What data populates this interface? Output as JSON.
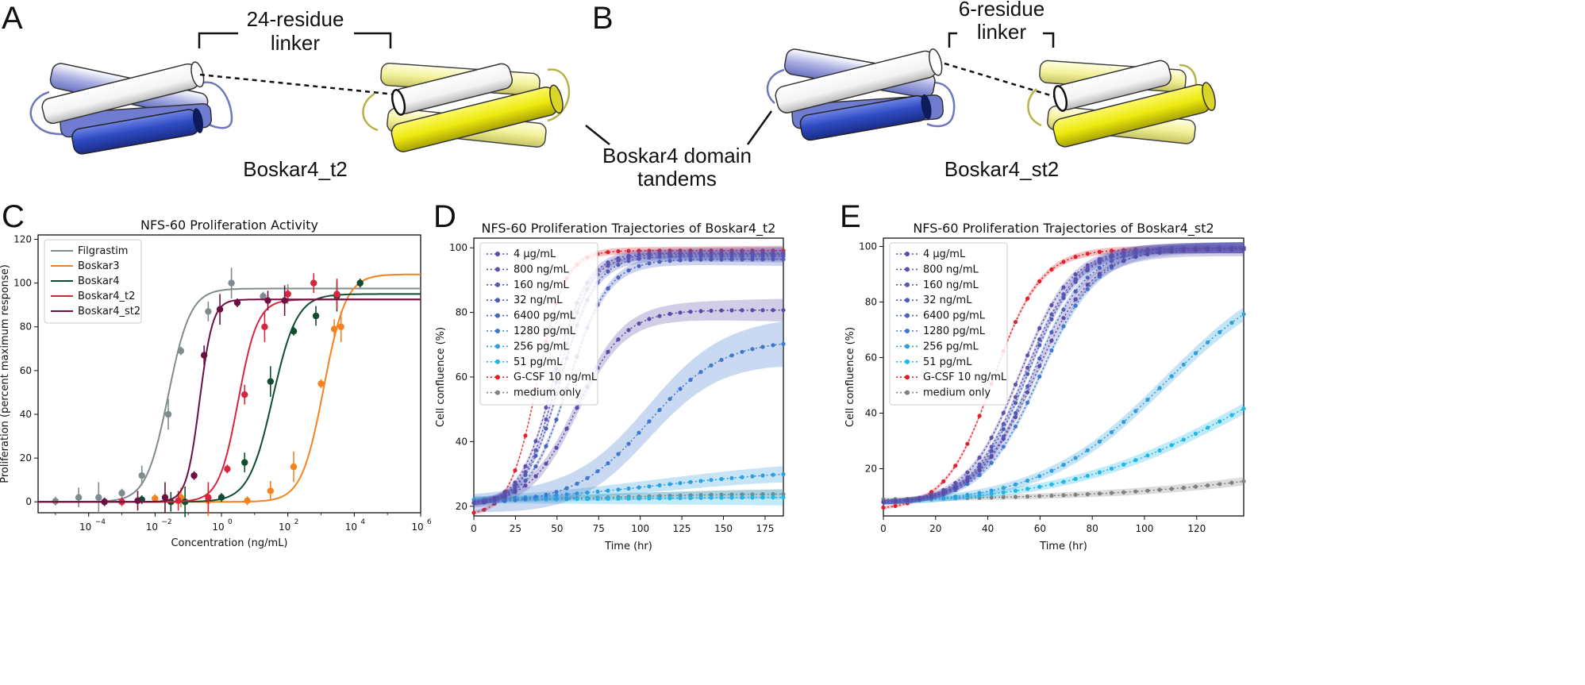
{
  "panels": {
    "A": {
      "letter": "A",
      "linker_line1": "24-residue",
      "linker_line2": "linker",
      "name": "Boskar4_t2"
    },
    "B": {
      "letter": "B",
      "linker_line1": "6-residue",
      "linker_line2": "linker",
      "name": "Boskar4_st2"
    },
    "center_label_line1": "Boskar4 domain",
    "center_label_line2": "tandems",
    "C": {
      "letter": "C"
    },
    "D": {
      "letter": "D"
    },
    "E": {
      "letter": "E"
    }
  },
  "colors": {
    "helix_blue": "#2f4cc4",
    "helix_blue_light": "#9ea5df",
    "helix_white": "#ffffff",
    "helix_yellow": "#f2ee1e",
    "helix_yellow_light": "#f6f4a4"
  },
  "chart_data": [
    {
      "id": "C",
      "type": "scatter",
      "title": "NFS-60 Proliferation Activity",
      "xlabel": "Concentration (ng/mL)",
      "ylabel": "Proliferation (percent maximum response)",
      "xscale": "log",
      "xlim": [
        3e-06,
        1000000
      ],
      "ylim": [
        -5,
        122
      ],
      "xticks": [
        0.0001,
        0.01,
        1,
        100,
        10000,
        1000000
      ],
      "xtick_labels": [
        "10",
        "10",
        "10",
        "10",
        "10",
        "10"
      ],
      "xtick_exponents": [
        "−4",
        "−2",
        "0",
        "2",
        "4",
        "6"
      ],
      "yticks": [
        0,
        20,
        40,
        60,
        80,
        100,
        120
      ],
      "ytick_labels": [
        "0",
        "20",
        "40",
        "60",
        "80",
        "100",
        "120"
      ],
      "legend_position": "top-left",
      "series": [
        {
          "name": "Filgrastim",
          "color": "#7f8c8d",
          "ec50": 0.025,
          "hill": 1.3,
          "top": 97.5,
          "points": [
            [
              1e-05,
              0.3
            ],
            [
              5e-05,
              2
            ],
            [
              0.0002,
              2
            ],
            [
              0.001,
              4
            ],
            [
              0.004,
              12
            ],
            [
              0.025,
              40
            ],
            [
              0.06,
              69
            ],
            [
              0.4,
              87
            ],
            [
              2,
              100
            ],
            [
              18,
              94
            ],
            [
              100,
              95
            ]
          ]
        },
        {
          "name": "Boskar3",
          "color": "#f5821f",
          "ec50": 1200,
          "hill": 1.3,
          "top": 104,
          "points": [
            [
              0.01,
              1.5
            ],
            [
              0.06,
              2
            ],
            [
              0.4,
              0.5
            ],
            [
              6,
              0.5
            ],
            [
              30,
              5
            ],
            [
              150,
              16
            ],
            [
              1000,
              54
            ],
            [
              2500,
              79
            ],
            [
              4000,
              80
            ],
            [
              15000,
              100
            ]
          ]
        },
        {
          "name": "Boskar4",
          "color": "#0e4d2f",
          "ec50": 35,
          "hill": 1.2,
          "top": 95,
          "points": [
            [
              0.004,
              1
            ],
            [
              0.03,
              0
            ],
            [
              0.08,
              0
            ],
            [
              1,
              2
            ],
            [
              5,
              18
            ],
            [
              30,
              55
            ],
            [
              150,
              78
            ],
            [
              700,
              85
            ],
            [
              3000,
              94
            ],
            [
              15000,
              100
            ]
          ]
        },
        {
          "name": "Boskar4_t2",
          "color": "#d7263d",
          "ec50": 3.2,
          "hill": 1.5,
          "top": 92.5,
          "points": [
            [
              0.001,
              0
            ],
            [
              0.05,
              0.5
            ],
            [
              0.4,
              2
            ],
            [
              1.5,
              15
            ],
            [
              5,
              49
            ],
            [
              20,
              80
            ],
            [
              100,
              95
            ],
            [
              600,
              100
            ],
            [
              3000,
              95
            ]
          ]
        },
        {
          "name": "Boskar4_st2",
          "color": "#6b1043",
          "ec50": 0.22,
          "hill": 2.2,
          "top": 92.5,
          "points": [
            [
              0.0003,
              0
            ],
            [
              0.003,
              0.5
            ],
            [
              0.02,
              2
            ],
            [
              0.15,
              12
            ],
            [
              0.3,
              67
            ],
            [
              0.9,
              88
            ],
            [
              3,
              91
            ],
            [
              25,
              92
            ],
            [
              80,
              92
            ]
          ]
        }
      ]
    },
    {
      "id": "D",
      "type": "line",
      "title": "NFS-60 Proliferation Trajectories of Boskar4_t2",
      "xlabel": "Time (hr)",
      "ylabel": "Cell confluence (%)",
      "xlim": [
        0,
        186
      ],
      "ylim": [
        17,
        103
      ],
      "xticks": [
        0,
        25,
        50,
        75,
        100,
        125,
        150,
        175
      ],
      "xtick_labels": [
        "0",
        "25",
        "50",
        "75",
        "100",
        "125",
        "150",
        "175"
      ],
      "yticks": [
        20,
        40,
        60,
        80,
        100
      ],
      "ytick_labels": [
        "20",
        "40",
        "60",
        "80",
        "100"
      ],
      "legend_position": "top-left",
      "series": [
        {
          "name": "4 µg/mL",
          "color": "#5b4aa8",
          "y0": 21,
          "top": 81.5,
          "mid": 62,
          "k": 0.07,
          "band": 3.5
        },
        {
          "name": "800 ng/mL",
          "color": "#5a52ae",
          "y0": 21,
          "top": 99,
          "mid": 48,
          "k": 0.1,
          "band": 2
        },
        {
          "name": "160 ng/mL",
          "color": "#5a56b2",
          "y0": 21,
          "top": 98.5,
          "mid": 50,
          "k": 0.1,
          "band": 2
        },
        {
          "name": "32 ng/mL",
          "color": "#4b5bb7",
          "y0": 21,
          "top": 98,
          "mid": 52,
          "k": 0.095,
          "band": 2
        },
        {
          "name": "6400 pg/mL",
          "color": "#4a63bf",
          "y0": 21,
          "top": 97,
          "mid": 57,
          "k": 0.085,
          "band": 2
        },
        {
          "name": "1280 pg/mL",
          "color": "#3f78cf",
          "y0": 21,
          "top": 72,
          "mid": 105,
          "k": 0.045,
          "band": 7
        },
        {
          "name": "256 pg/mL",
          "color": "#2e9fdc",
          "y0": 22,
          "top": 33,
          "mid": 110,
          "k": 0.02,
          "band": 2.5
        },
        {
          "name": "51 pg/mL",
          "color": "#1fb7e8",
          "y0": 22,
          "top": 23,
          "mid": 90,
          "k": 0.02,
          "band": 2.5
        },
        {
          "name": "G-CSF 10 ng/mL",
          "color": "#e0202a",
          "y0": 18,
          "top": 100,
          "mid": 38,
          "k": 0.12,
          "band": 1.5
        },
        {
          "name": "medium only",
          "color": "#808080",
          "y0": 22,
          "top": 24,
          "mid": 90,
          "k": 0.03,
          "band": 1.5
        }
      ]
    },
    {
      "id": "E",
      "type": "line",
      "title": "NFS-60 Proliferation Trajectories of Boskar4_st2",
      "xlabel": "Time (hr)",
      "ylabel": "Cell confluence (%)",
      "xlim": [
        0,
        138
      ],
      "ylim": [
        3,
        103
      ],
      "xticks": [
        0,
        20,
        40,
        60,
        80,
        100,
        120
      ],
      "xtick_labels": [
        "0",
        "20",
        "40",
        "60",
        "80",
        "100",
        "120"
      ],
      "yticks": [
        20,
        40,
        60,
        80,
        100
      ],
      "ytick_labels": [
        "20",
        "40",
        "60",
        "80",
        "100"
      ],
      "legend_position": "top-left",
      "series": [
        {
          "name": "4 µg/mL",
          "color": "#5b4aa8",
          "y0": 8,
          "top": 99.5,
          "mid": 58,
          "k": 0.09,
          "band": 2.5
        },
        {
          "name": "800 ng/mL",
          "color": "#5a52ae",
          "y0": 8,
          "top": 100,
          "mid": 52,
          "k": 0.1,
          "band": 2
        },
        {
          "name": "160 ng/mL",
          "color": "#5a56b2",
          "y0": 8,
          "top": 100,
          "mid": 54,
          "k": 0.1,
          "band": 2
        },
        {
          "name": "32 ng/mL",
          "color": "#4b5bb7",
          "y0": 8,
          "top": 100,
          "mid": 55,
          "k": 0.1,
          "band": 2
        },
        {
          "name": "6400 pg/mL",
          "color": "#4a63bf",
          "y0": 8,
          "top": 100,
          "mid": 57,
          "k": 0.095,
          "band": 2
        },
        {
          "name": "1280 pg/mL",
          "color": "#3f78cf",
          "y0": 8,
          "top": 100,
          "mid": 60,
          "k": 0.09,
          "band": 2
        },
        {
          "name": "256 pg/mL",
          "color": "#2e9fdc",
          "y0": 8,
          "top": 96,
          "mid": 108,
          "k": 0.042,
          "band": 2.5
        },
        {
          "name": "51 pg/mL",
          "color": "#1fb7e8",
          "y0": 8,
          "top": 80,
          "mid": 140,
          "k": 0.028,
          "band": 2
        },
        {
          "name": "G-CSF 10 ng/mL",
          "color": "#e0202a",
          "y0": 6,
          "top": 100,
          "mid": 42,
          "k": 0.11,
          "band": 1.5
        },
        {
          "name": "medium only",
          "color": "#808080",
          "y0": 9,
          "top": 60,
          "mid": 230,
          "k": 0.02,
          "band": 1.5
        }
      ]
    }
  ]
}
